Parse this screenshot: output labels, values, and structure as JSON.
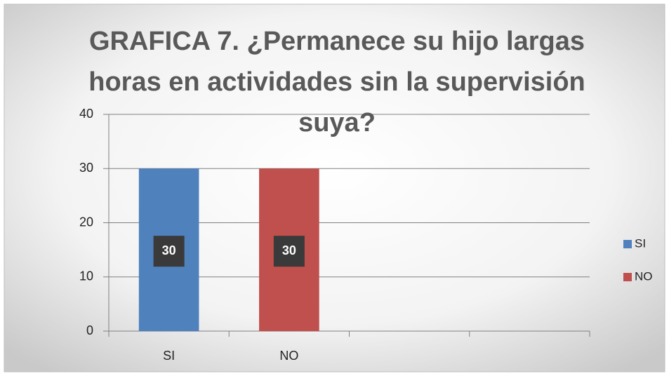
{
  "chart_data": {
    "type": "bar",
    "title": "GRAFICA 7. ¿Permanece su hijo largas horas en actividades sin la supervisión suya?",
    "categories": [
      "SI",
      "NO",
      null,
      null
    ],
    "series": [
      {
        "name": "SI",
        "color": "#4f81bd",
        "values": [
          30,
          null,
          null,
          null
        ]
      },
      {
        "name": "NO",
        "color": "#c0504d",
        "values": [
          null,
          30,
          null,
          null
        ]
      }
    ],
    "ylim": [
      0,
      40
    ],
    "yticks": [
      0,
      10,
      20,
      30,
      40
    ],
    "grid": true,
    "legend": "right"
  }
}
